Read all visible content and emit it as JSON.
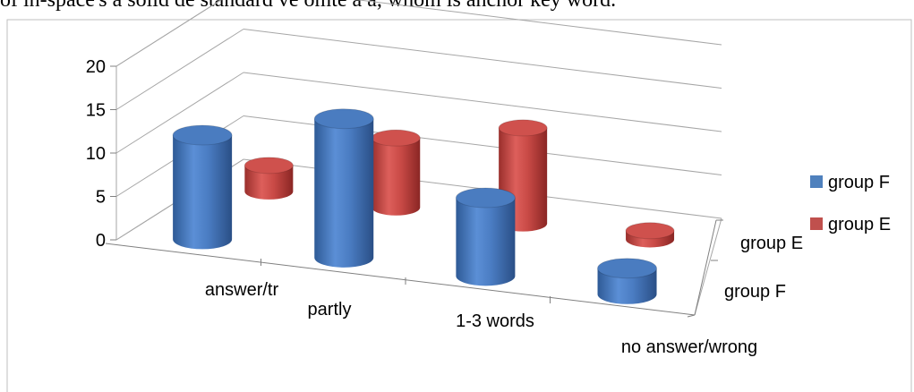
{
  "top_text": "of in-spaсe's a solid de standard ve omte a ă, whom is anchor key word.",
  "chart_data": {
    "type": "bar",
    "style": "3d-cylinder",
    "categories": [
      "answer/tr",
      "partly",
      "1-3 words",
      "no answer/wrong"
    ],
    "series": [
      {
        "name": "group F",
        "color": "#4f81bd",
        "values": [
          12,
          16,
          9,
          3
        ]
      },
      {
        "name": "group E",
        "color": "#c0504d",
        "values": [
          3,
          8,
          11,
          1
        ]
      }
    ],
    "depth_labels": [
      "group E",
      "group F"
    ],
    "ylim": [
      0,
      20
    ],
    "yticks": [
      0,
      5,
      10,
      15,
      20
    ],
    "grid": true,
    "legend_position": "right"
  }
}
